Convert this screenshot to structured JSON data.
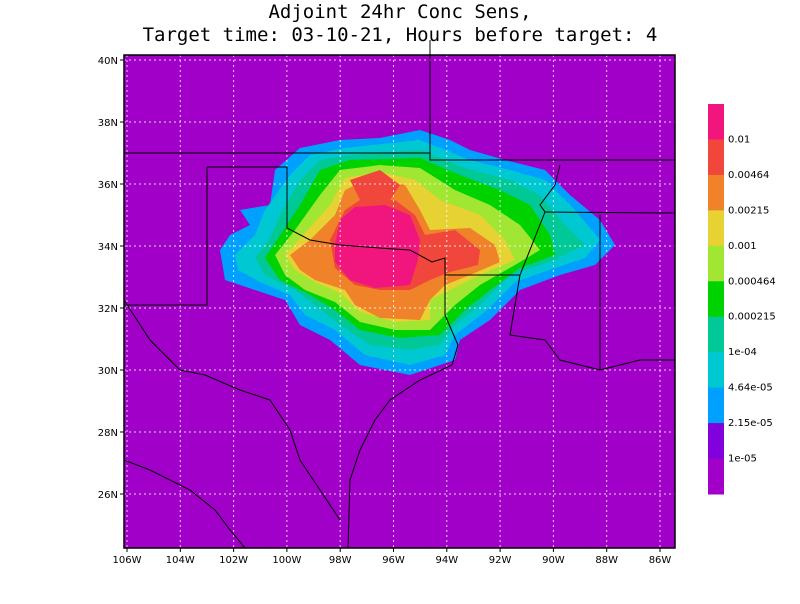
{
  "title": [
    "Adjoint 24hr Conc Sens,",
    "Target time: 03-10-21, Hours before target: 4"
  ],
  "x_axis_labels": [
    "106W",
    "104W",
    "102W",
    "100W",
    "98W",
    "96W",
    "94W",
    "92W",
    "90W",
    "88W",
    "86W"
  ],
  "y_axis_labels": [
    "40N",
    "38N",
    "36N",
    "34N",
    "32N",
    "30N",
    "28N",
    "26N"
  ],
  "colorbar": {
    "labels": [
      "0.01",
      "0.00464",
      "0.00215",
      "0.001",
      "0.000464",
      "0.000215",
      "1e-04",
      "4.64e-05",
      "2.15e-05",
      "1e-05"
    ],
    "colors": [
      "#f0167e",
      "#f0463c",
      "#f0822a",
      "#e6d232",
      "#a0e632",
      "#00d200",
      "#00c896",
      "#00c8d2",
      "#00a0ff",
      "#8200dc",
      "#a000c8"
    ]
  }
}
